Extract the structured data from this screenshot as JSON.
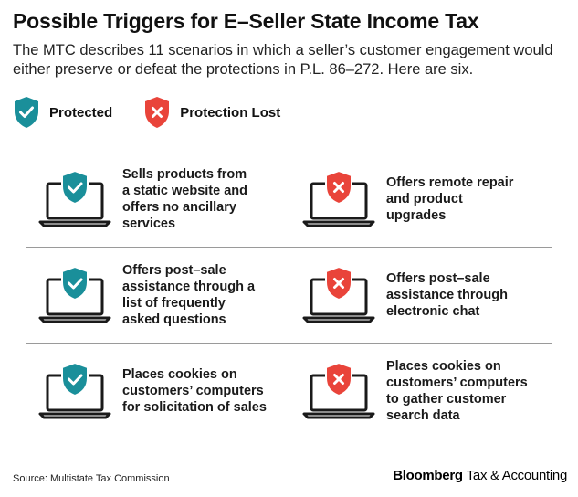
{
  "title": "Possible Triggers for E–Seller State Income Tax",
  "subtitle": "The MTC describes 11 scenarios in which a seller’s customer engagement would either preserve or defeat the protections in P.L. 86–272. Here are six.",
  "legend": {
    "protected": "Protected",
    "lost": "Protection Lost"
  },
  "colors": {
    "protected": "#1a8f9a",
    "lost": "#e9443a"
  },
  "cells": {
    "left": [
      "Sells products from a static website and offers no ancillary services",
      "Offers post–sale assistance through a list of frequently asked questions",
      "Places cookies on customers’ computers for solicitation of sales"
    ],
    "right": [
      "Offers remote repair and product upgrades",
      "Offers post–sale assistance through electronic chat",
      "Places cookies on customers’ computers to gather customer search data"
    ]
  },
  "icons": {
    "protected": "laptop-check-shield-icon",
    "lost": "laptop-x-shield-icon"
  },
  "source": "Source: Multistate Tax Commission",
  "brand": {
    "bold": "Bloomberg",
    "regular": "Tax & Accounting"
  }
}
